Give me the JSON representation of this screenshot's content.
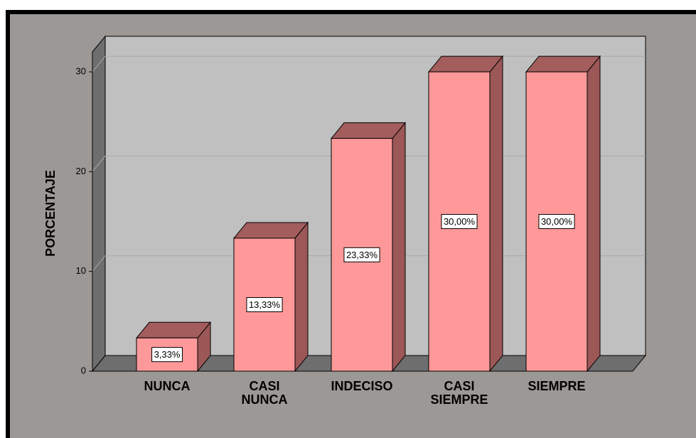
{
  "chart_data": {
    "type": "bar3d",
    "y_label": "PORCENTAJE",
    "categories": [
      "NUNCA",
      "CASI NUNCA",
      "INDECISO",
      "CASI SIEMPRE",
      "SIEMPRE"
    ],
    "values": [
      3.33,
      13.33,
      23.33,
      30,
      30
    ],
    "value_labels": [
      "3,33%",
      "13,33%",
      "23,33%",
      "30,00%",
      "30,00%"
    ],
    "color": "#ff9999",
    "ylim": [
      0,
      32
    ],
    "yticks": [
      0,
      10,
      20,
      30
    ],
    "grid": true
  }
}
